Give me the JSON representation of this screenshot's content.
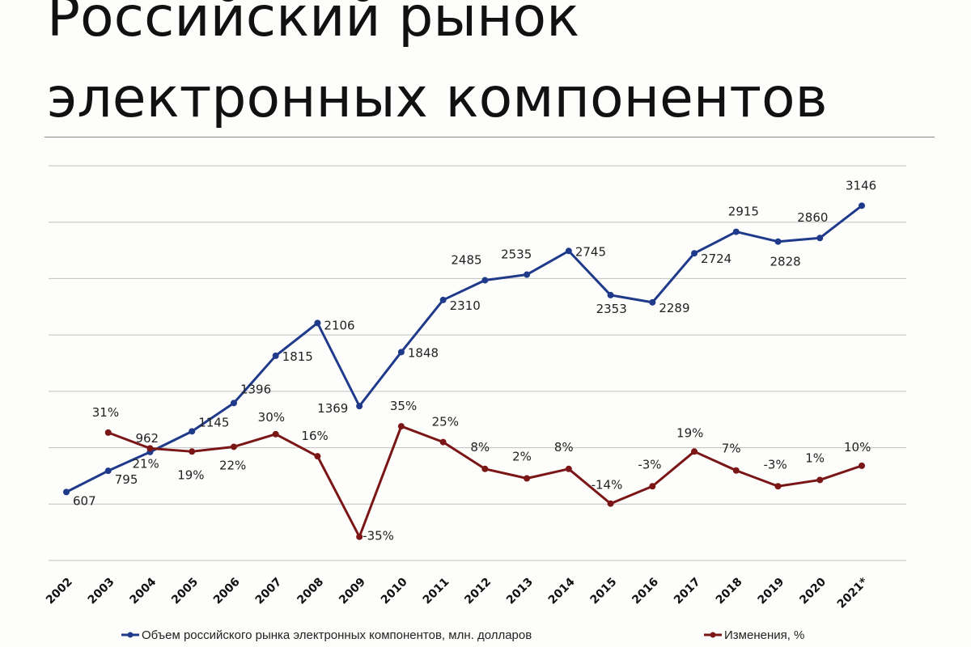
{
  "title_line1": "Российский рынок",
  "title_line2": "электронных компонентов",
  "chart_data": {
    "type": "line",
    "title": "Российский рынок электронных компонентов",
    "categories": [
      "2002",
      "2003",
      "2004",
      "2005",
      "2006",
      "2007",
      "2008",
      "2009",
      "2010",
      "2011",
      "2012",
      "2013",
      "2014",
      "2015",
      "2016",
      "2017",
      "2018",
      "2019",
      "2020",
      "2021*"
    ],
    "series": [
      {
        "name": "Объем российского рынка электронных компонентов, млн. долларов",
        "color": "#1f3a8a",
        "axis": "left",
        "ylim": [
          0,
          3500
        ],
        "values": [
          607,
          795,
          962,
          1145,
          1396,
          1815,
          2106,
          1369,
          1848,
          2310,
          2485,
          2535,
          2745,
          2353,
          2289,
          2724,
          2915,
          2828,
          2860,
          3146
        ],
        "labels": [
          "607",
          "795",
          "962",
          "1145",
          "1396",
          "1815",
          "2106",
          "1369",
          "1848",
          "2310",
          "2485",
          "2535",
          "2745",
          "2353",
          "2289",
          "2724",
          "2915",
          "2828",
          "2860",
          "3146"
        ]
      },
      {
        "name": "Изменения, %",
        "color": "#7a1616",
        "axis": "right",
        "ylim": [
          -50,
          200
        ],
        "values": [
          null,
          31,
          21,
          19,
          22,
          30,
          16,
          -35,
          35,
          25,
          8,
          2,
          8,
          -14,
          -3,
          19,
          7,
          -3,
          1,
          10
        ],
        "labels": [
          null,
          "31%",
          "21%",
          "19%",
          "22%",
          "30%",
          "16%",
          "-35%",
          "35%",
          "25%",
          "8%",
          "2%",
          "8%",
          "-14%",
          "-3%",
          "19%",
          "7%",
          "-3%",
          "1%",
          "10%"
        ]
      }
    ],
    "grid": true,
    "legend_position": "bottom"
  }
}
